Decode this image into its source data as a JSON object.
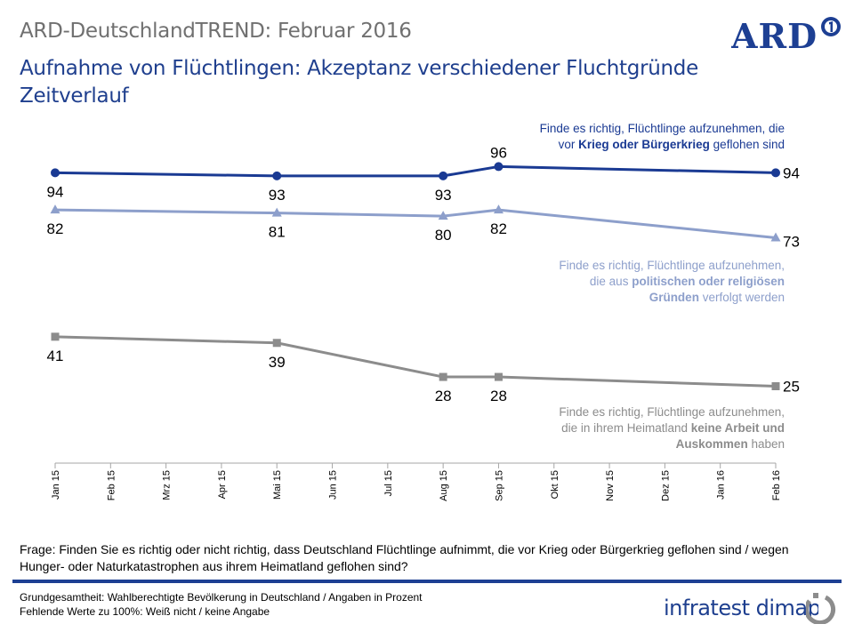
{
  "header": {
    "title": "ARD-DeutschlandTREND: Februar 2016"
  },
  "chart_data": {
    "type": "line",
    "title": "Aufnahme von Flüchtlingen: Akzeptanz verschiedener Fluchtgründe",
    "subtitle": "Zeitverlauf",
    "categories": [
      "Jan 15",
      "Feb 15",
      "Mrz 15",
      "Apr 15",
      "Mai 15",
      "Jun 15",
      "Jul 15",
      "Aug 15",
      "Sep 15",
      "Okt 15",
      "Nov 15",
      "Dez 15",
      "Jan 16",
      "Feb 16"
    ],
    "series": [
      {
        "points": [
          [
            "Jan 15",
            94
          ],
          [
            "Mai 15",
            93
          ],
          [
            "Aug 15",
            93
          ],
          [
            "Sep 15",
            96
          ],
          [
            "Feb 16",
            94
          ]
        ],
        "color": "#1a3a93",
        "marker": "circle",
        "legend_pre": "Finde es richtig, Flüchtlinge  aufzunehmen,  die",
        "legend_pre2": "vor ",
        "legend_bold": "Krieg oder Bürgerkrieg",
        "legend_post": " geflohen sind"
      },
      {
        "points": [
          [
            "Jan 15",
            82
          ],
          [
            "Mai 15",
            81
          ],
          [
            "Aug 15",
            80
          ],
          [
            "Sep 15",
            82
          ],
          [
            "Feb 16",
            73
          ]
        ],
        "color": "#8d9fcb",
        "marker": "triangle",
        "legend_pre": "Finde es richtig, Flüchtlinge  aufzunehmen,",
        "legend_pre2": "die aus ",
        "legend_bold": "politischen oder religiösen",
        "legend_bold2": "Gründen",
        "legend_post": " verfolgt  werden"
      },
      {
        "points": [
          [
            "Jan 15",
            41
          ],
          [
            "Mai 15",
            39
          ],
          [
            "Aug 15",
            28
          ],
          [
            "Sep 15",
            28
          ],
          [
            "Feb 16",
            25
          ]
        ],
        "color": "#8c8c8c",
        "marker": "square",
        "legend_pre": "Finde es richtig, Flüchtlinge  aufzunehmen,",
        "legend_pre2": "die in ihrem Heimatland ",
        "legend_bold": "keine Arbeit und",
        "legend_bold2": "Auskommen",
        "legend_post": " haben"
      }
    ]
  },
  "question": "Frage: Finden Sie es richtig oder nicht richtig, dass Deutschland  Flüchtlinge  aufnimmt,  die vor Krieg oder Bürgerkrieg geflohen sind / wegen Hunger-  oder Naturkatastrophen  aus ihrem Heimatland geflohen sind?",
  "footnote": {
    "line1": "Grundgesamtheit:  Wahlberechtigte Bevölkerung  in Deutschland / Angaben  in Prozent",
    "line2": "Fehlende Werte zu 100%: Weiß nicht / keine Angabe"
  },
  "logos": {
    "ard": "ARD",
    "infratest": "infratest dimap"
  },
  "colors": {
    "brand_blue": "#1d3f93"
  }
}
